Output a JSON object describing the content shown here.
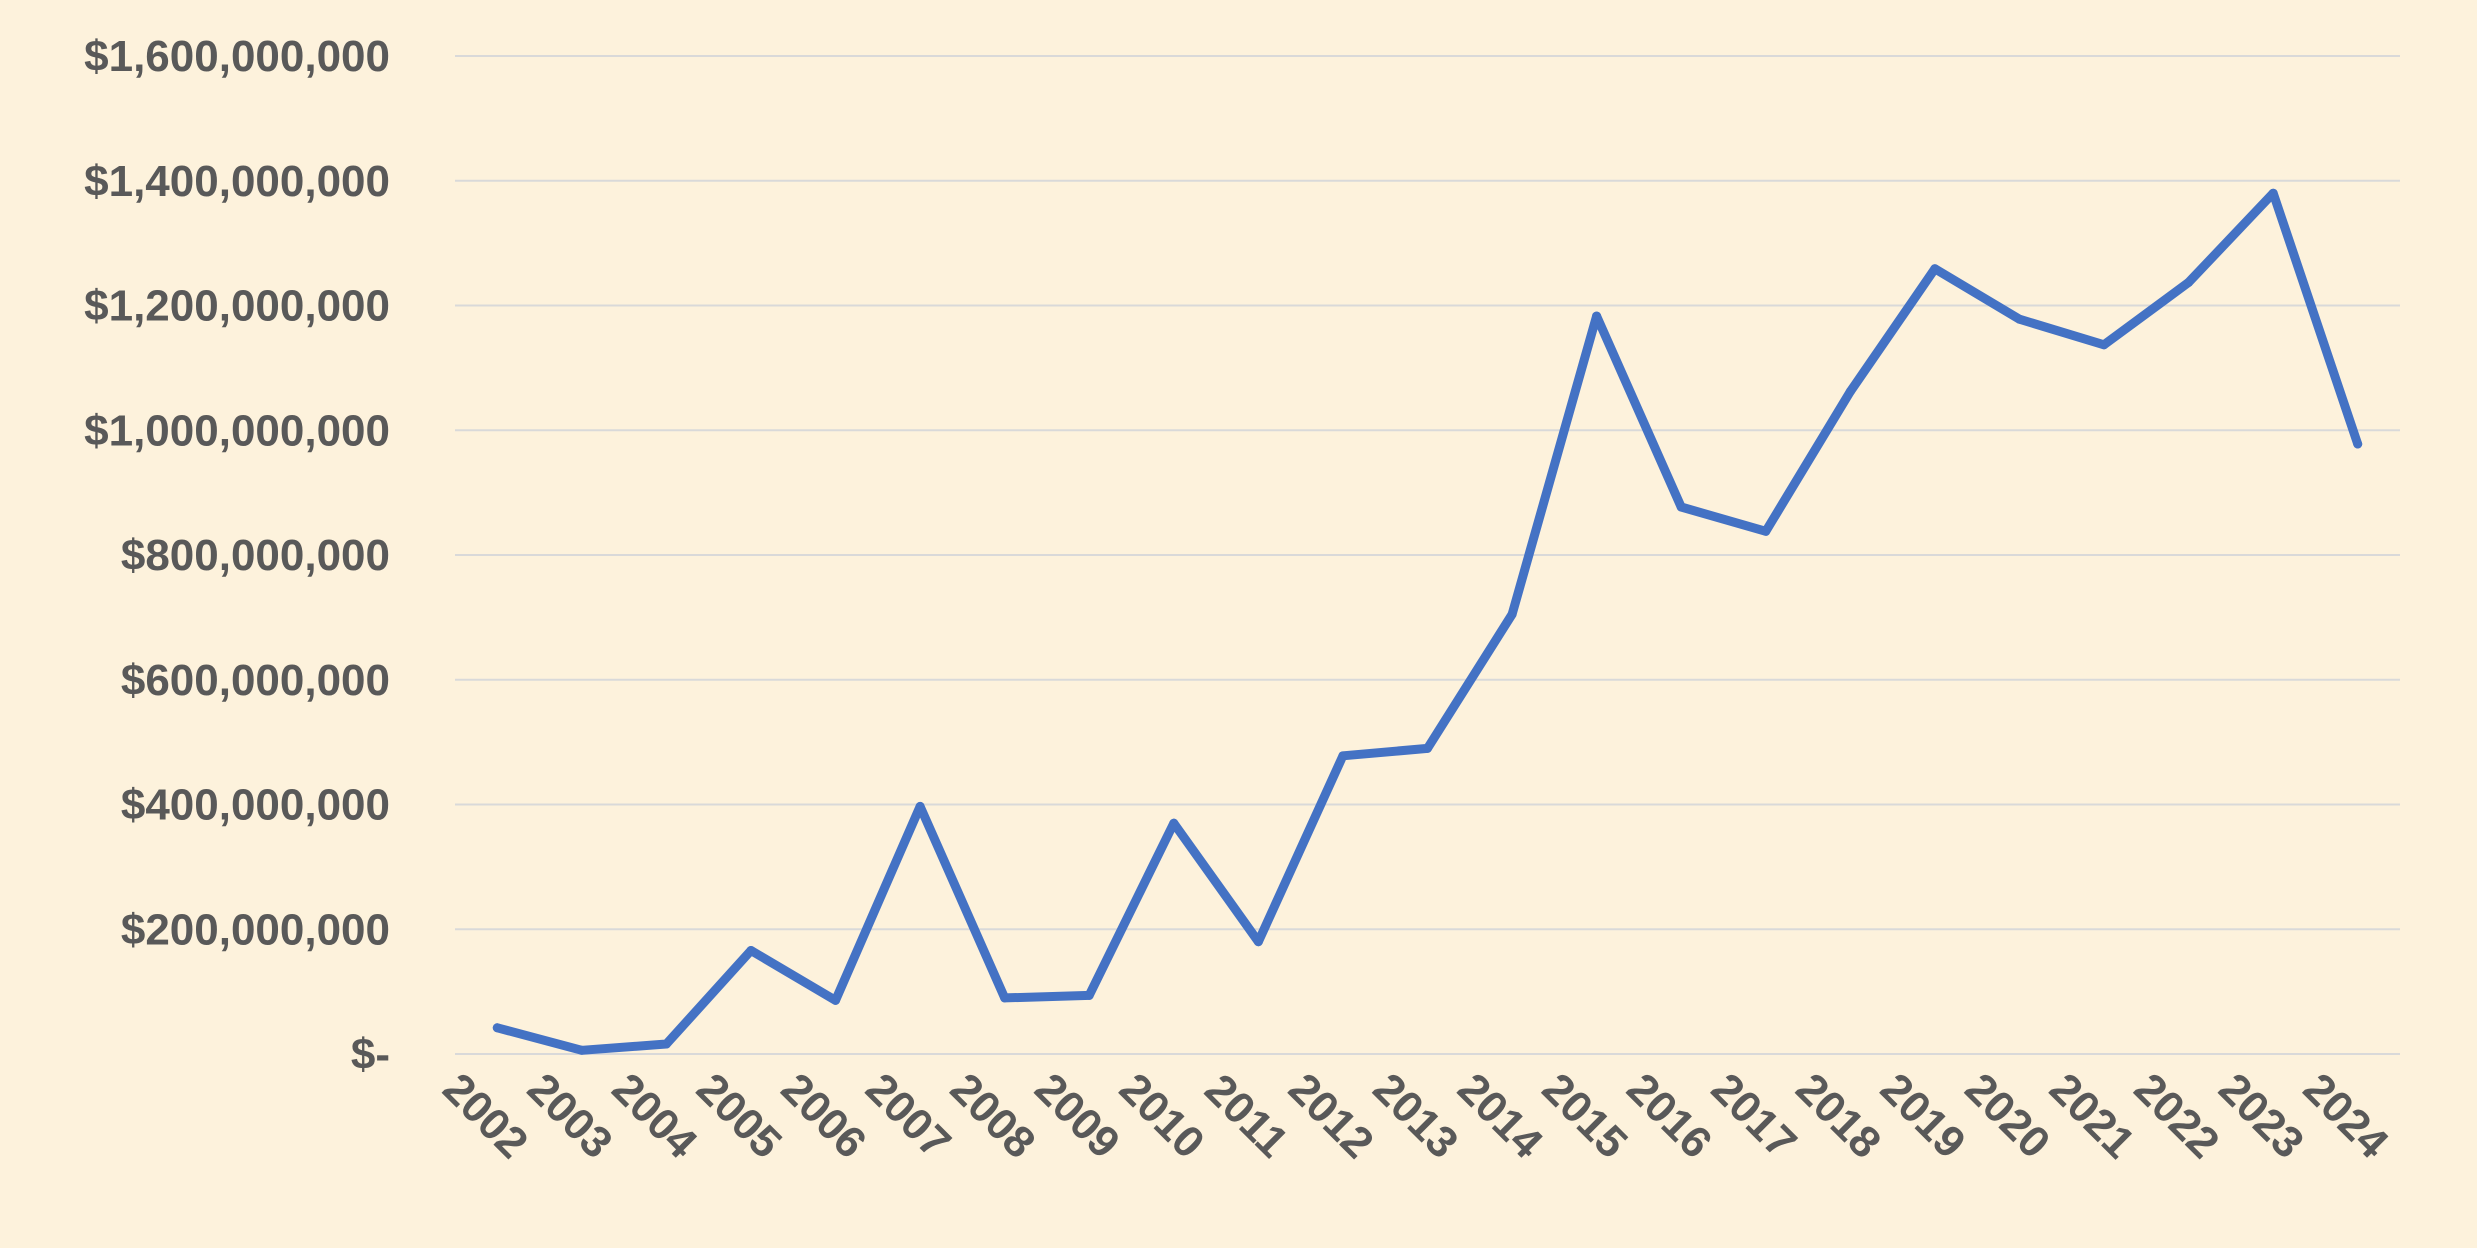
{
  "chart_data": {
    "type": "line",
    "title": "",
    "xlabel": "",
    "ylabel": "",
    "x": [
      "2002",
      "2003",
      "2004",
      "2005",
      "2006",
      "2007",
      "2008",
      "2009",
      "2010",
      "2011",
      "2012",
      "2013",
      "2014",
      "2015",
      "2016",
      "2017",
      "2018",
      "2019",
      "2020",
      "2021",
      "2022",
      "2023",
      "2024"
    ],
    "series": [
      {
        "values": [
          42000000,
          6000000,
          16000000,
          166000000,
          86000000,
          397000000,
          90000000,
          94000000,
          370000000,
          180000000,
          478000000,
          490000000,
          705000000,
          1183000000,
          877000000,
          838000000,
          1062000000,
          1259000000,
          1178000000,
          1137000000,
          1237000000,
          1380000000,
          978000000
        ],
        "color": "#4472C4"
      }
    ],
    "ylim": [
      0,
      1600000000
    ],
    "yticks": [
      0,
      200000000,
      400000000,
      600000000,
      800000000,
      1000000000,
      1200000000,
      1400000000,
      1600000000
    ],
    "ytick_labels": [
      "$-",
      "$200,000,000",
      "$400,000,000",
      "$600,000,000",
      "$800,000,000",
      "$1,000,000,000",
      "$1,200,000,000",
      "$1,400,000,000",
      "$1,600,000,000"
    ],
    "grid": true,
    "legend": "none",
    "colors": {
      "background": "#FDF2DC",
      "line": "#4472C4",
      "grid": "#D9D9D9",
      "text": "#595959"
    }
  }
}
